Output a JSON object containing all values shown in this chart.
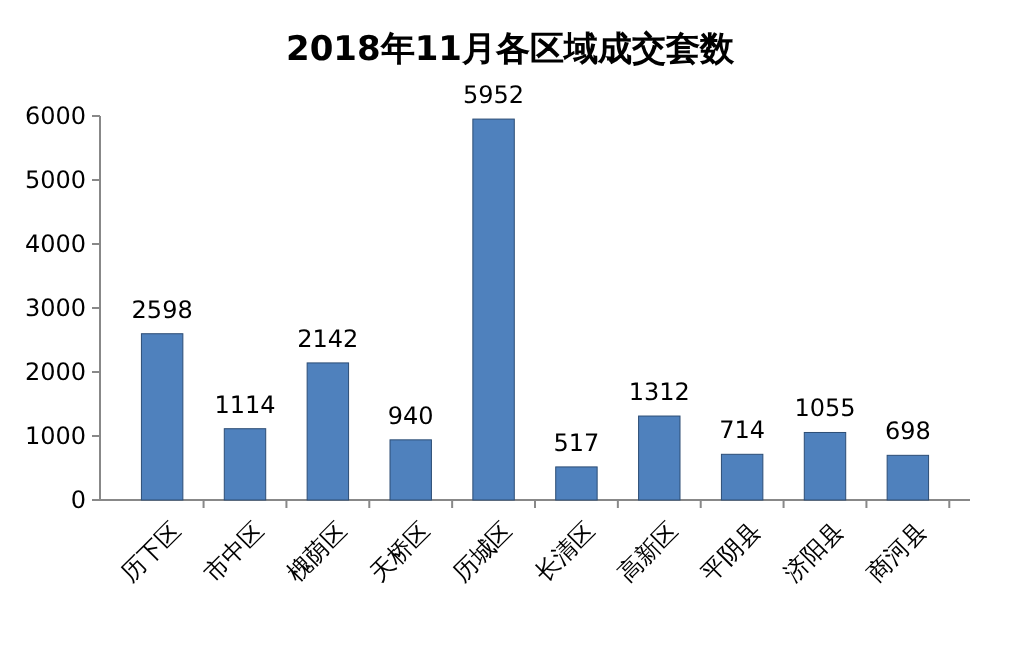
{
  "chart_data": {
    "type": "bar",
    "title": "2018年11月各区域成交套数",
    "categories": [
      "历下区",
      "市中区",
      "槐荫区",
      "天桥区",
      "历城区",
      "长清区",
      "高新区",
      "平阴县",
      "济阳县",
      "商河县"
    ],
    "values": [
      2598,
      1114,
      2142,
      940,
      5952,
      517,
      1312,
      714,
      1055,
      698
    ],
    "color": "#4f81bd",
    "ylim": [
      0,
      6000
    ],
    "yticks": [
      0,
      1000,
      2000,
      3000,
      4000,
      5000,
      6000
    ],
    "data_labels": true
  }
}
